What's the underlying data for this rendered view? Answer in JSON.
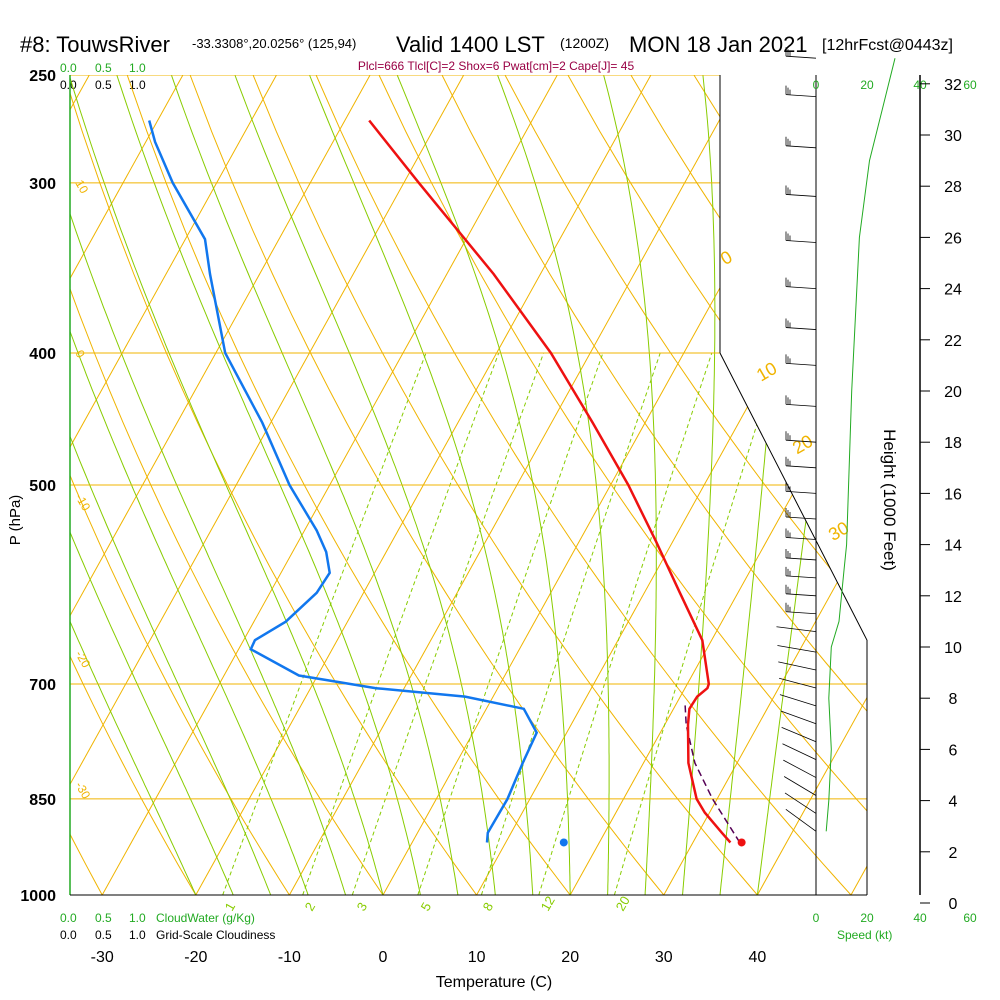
{
  "header": {
    "station": "#8: TouwsRiver",
    "coords": "-33.3308°,20.0256° (125,94)",
    "valid": "Valid 1400 LST",
    "zulu": "(1200Z)",
    "date": "MON 18 Jan 2021",
    "forecast": "[12hrFcst@0443z]",
    "indices": "Plcl=666 Tlcl[C]=2 Shox=6 Pwat[cm]=2 Cape[J]= 45"
  },
  "colors": {
    "isotherm": "#f0b400",
    "dry_adiabat": "#88cc00",
    "mixing_ratio": "#88cc00",
    "temperature": "#ee1111",
    "dewpoint": "#1177ee",
    "parcel": "#550055",
    "cloud": "#22aa22",
    "indices": "#990044"
  },
  "chart_data": {
    "type": "skew-t",
    "xlabel": "Temperature (C)",
    "ylabel": "P (hPa)",
    "y2label": "Height (1000 Feet)",
    "x_ticks": [
      -30,
      -20,
      -10,
      0,
      10,
      20,
      30,
      40
    ],
    "p_ticks": [
      250,
      300,
      400,
      500,
      700,
      850,
      1000
    ],
    "height_ticks": [
      0,
      2,
      4,
      6,
      8,
      10,
      12,
      14,
      16,
      18,
      20,
      22,
      24,
      26,
      28,
      30,
      32
    ],
    "isotherm_labels": [
      "0",
      "10",
      "20",
      "30"
    ],
    "left_labels": [
      "10",
      "0",
      "-10",
      "-20",
      "-30"
    ],
    "mixing_ratio_labels": [
      "1",
      "2",
      "3",
      "5",
      "8",
      "12",
      "20"
    ],
    "cloud_scale": {
      "top_green": [
        "0.0",
        "0.5",
        "1.0"
      ],
      "top_black": [
        "0.0",
        "0.5",
        "1.0"
      ],
      "bottom_green": [
        "0.0",
        "0.5",
        "1.0"
      ],
      "bottom_black": [
        "0.0",
        "0.5",
        "1.0"
      ],
      "cloudwater_label": "CloudWater (g/Kg)",
      "cloudiness_label": "Grid-Scale Cloudiness"
    },
    "speed": {
      "ticks": [
        "0",
        "20",
        "40",
        "60"
      ],
      "label": "Speed (kt)"
    },
    "temperature": [
      {
        "p": 915,
        "t": 34.0
      },
      {
        "p": 900,
        "t": 32.5
      },
      {
        "p": 870,
        "t": 29.5
      },
      {
        "p": 850,
        "t": 27.8
      },
      {
        "p": 800,
        "t": 24.8
      },
      {
        "p": 750,
        "t": 22.5
      },
      {
        "p": 730,
        "t": 21.7
      },
      {
        "p": 715,
        "t": 21.8
      },
      {
        "p": 705,
        "t": 22.4
      },
      {
        "p": 700,
        "t": 22.3
      },
      {
        "p": 650,
        "t": 19.0
      },
      {
        "p": 600,
        "t": 13.8
      },
      {
        "p": 550,
        "t": 8.2
      },
      {
        "p": 500,
        "t": 1.9
      },
      {
        "p": 450,
        "t": -5.6
      },
      {
        "p": 400,
        "t": -14.2
      },
      {
        "p": 350,
        "t": -25.0
      },
      {
        "p": 300,
        "t": -38.4
      },
      {
        "p": 270,
        "t": -47.4
      }
    ],
    "dewpoint": [
      {
        "p": 915,
        "t": 8.0
      },
      {
        "p": 900,
        "t": 7.5
      },
      {
        "p": 850,
        "t": 7.6
      },
      {
        "p": 800,
        "t": 7.1
      },
      {
        "p": 760,
        "t": 6.8
      },
      {
        "p": 730,
        "t": 4.0
      },
      {
        "p": 715,
        "t": -3.0
      },
      {
        "p": 705,
        "t": -13.0
      },
      {
        "p": 690,
        "t": -22.0
      },
      {
        "p": 660,
        "t": -28.7
      },
      {
        "p": 650,
        "t": -28.8
      },
      {
        "p": 630,
        "t": -26.6
      },
      {
        "p": 600,
        "t": -25.0
      },
      {
        "p": 580,
        "t": -24.8
      },
      {
        "p": 560,
        "t": -26.4
      },
      {
        "p": 540,
        "t": -28.7
      },
      {
        "p": 500,
        "t": -34.3
      },
      {
        "p": 450,
        "t": -40.9
      },
      {
        "p": 400,
        "t": -49.0
      },
      {
        "p": 350,
        "t": -55.3
      },
      {
        "p": 330,
        "t": -57.9
      },
      {
        "p": 300,
        "t": -64.7
      },
      {
        "p": 280,
        "t": -69.0
      },
      {
        "p": 270,
        "t": -70.9
      }
    ],
    "parcel": [
      {
        "p": 915,
        "t": 35.0
      },
      {
        "p": 850,
        "t": 29.5
      },
      {
        "p": 800,
        "t": 25.5
      },
      {
        "p": 750,
        "t": 22.3
      },
      {
        "p": 725,
        "t": 21.0
      }
    ],
    "surface_temp": 35.2,
    "surface_dewpoint": 16.2,
    "wind_speed_kt": [
      {
        "h": 2.8,
        "s": 4
      },
      {
        "h": 4,
        "s": 5
      },
      {
        "h": 6,
        "s": 6
      },
      {
        "h": 8,
        "s": 5
      },
      {
        "h": 10,
        "s": 6
      },
      {
        "h": 11,
        "s": 9
      },
      {
        "h": 12,
        "s": 10
      },
      {
        "h": 13,
        "s": 11
      },
      {
        "h": 14,
        "s": 12
      },
      {
        "h": 20,
        "s": 14
      },
      {
        "h": 26,
        "s": 17
      },
      {
        "h": 29,
        "s": 21
      },
      {
        "h": 31,
        "s": 26
      },
      {
        "h": 33,
        "s": 31
      }
    ],
    "wind_barb_heights": [
      2.8,
      3.5,
      4.2,
      4.9,
      5.6,
      6.3,
      7.0,
      7.7,
      8.4,
      9.1,
      9.8,
      10.6,
      11.3,
      12.0,
      12.7,
      13.4,
      14.2,
      15.0,
      16.0,
      17.0,
      18.0,
      19.4,
      21.0,
      22.4,
      24.0,
      25.8,
      27.6,
      29.5,
      31.5,
      33.0
    ]
  }
}
